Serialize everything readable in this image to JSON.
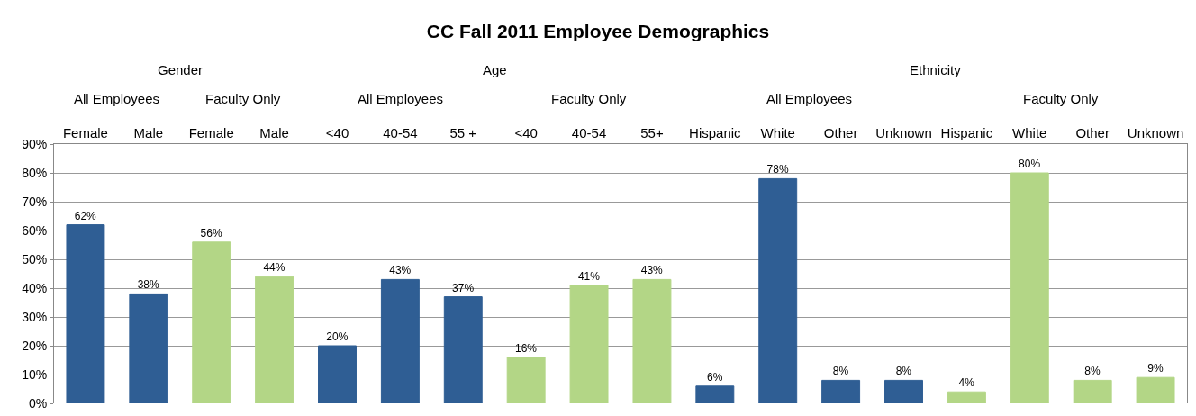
{
  "chart_data": {
    "type": "bar",
    "title": "CC Fall 2011 Employee Demographics",
    "categories": [
      "Female",
      "Male",
      "Female",
      "Male",
      "<40",
      "40-54",
      "55 +",
      "<40",
      "40-54",
      "55+",
      "Hispanic",
      "White",
      "Other",
      "Unknown",
      "Hispanic",
      "White",
      "Other",
      "Unknown"
    ],
    "values": [
      62,
      38,
      56,
      44,
      20,
      43,
      37,
      16,
      41,
      43,
      6,
      78,
      8,
      8,
      4,
      80,
      8,
      9
    ],
    "value_labels": [
      "62%",
      "38%",
      "56%",
      "44%",
      "20%",
      "43%",
      "37%",
      "16%",
      "41%",
      "43%",
      "6%",
      "78%",
      "8%",
      "8%",
      "4%",
      "80%",
      "8%",
      "9%"
    ],
    "colors": [
      "#2f5e94",
      "#2f5e94",
      "#b3d686",
      "#b3d686",
      "#2f5e94",
      "#2f5e94",
      "#2f5e94",
      "#b3d686",
      "#b3d686",
      "#b3d686",
      "#2f5e94",
      "#2f5e94",
      "#2f5e94",
      "#2f5e94",
      "#b3d686",
      "#b3d686",
      "#b3d686",
      "#b3d686"
    ],
    "ylim": [
      0,
      90
    ],
    "yticks": [
      {
        "value": 0,
        "label": "0%"
      },
      {
        "value": 10,
        "label": "10%"
      },
      {
        "value": 20,
        "label": "20%"
      },
      {
        "value": 30,
        "label": "30%"
      },
      {
        "value": 40,
        "label": "40%"
      },
      {
        "value": 50,
        "label": "50%"
      },
      {
        "value": 60,
        "label": "60%"
      },
      {
        "value": 70,
        "label": "70%"
      },
      {
        "value": 80,
        "label": "80%"
      },
      {
        "value": 90,
        "label": "90%"
      }
    ],
    "annotations": [
      "Gender",
      "Age",
      "Ethnicity",
      "All Employees",
      "Faculty Only",
      "All Employees",
      "Faculty Only",
      "All Employees",
      "Faculty Only"
    ],
    "grid": "y"
  }
}
